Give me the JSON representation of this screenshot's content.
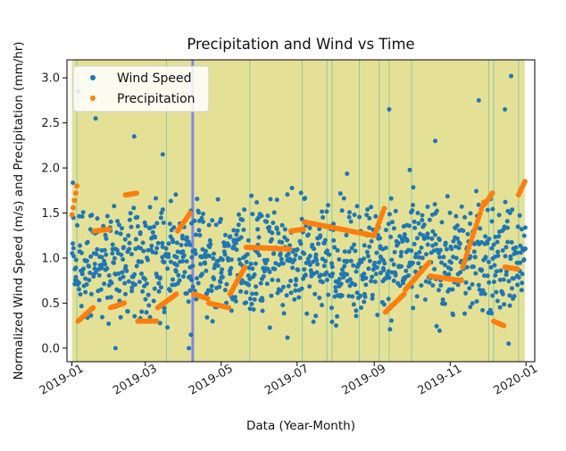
{
  "chart_data": {
    "type": "scatter",
    "title": "Precipitation and Wind vs Time",
    "xlabel": "Data (Year-Month)",
    "ylabel": "Normalized Wind Speed (m/s) and Precipitation (mm/hr)",
    "x_range": [
      "2018-12-28",
      "2020-01-08"
    ],
    "ylim": [
      -0.15,
      3.2
    ],
    "x_ticks": [
      {
        "date": "2019-01-01",
        "label": "2019-01"
      },
      {
        "date": "2019-03-01",
        "label": "2019-03"
      },
      {
        "date": "2019-05-01",
        "label": "2019-05"
      },
      {
        "date": "2019-07-01",
        "label": "2019-07"
      },
      {
        "date": "2019-09-01",
        "label": "2019-09"
      },
      {
        "date": "2019-11-01",
        "label": "2019-11"
      },
      {
        "date": "2020-01-01",
        "label": "2020-01"
      }
    ],
    "y_ticks": [
      0.0,
      0.5,
      1.0,
      1.5,
      2.0,
      2.5,
      3.0
    ],
    "y_tick_labels": [
      "0.0",
      "0.5",
      "1.0",
      "1.5",
      "2.0",
      "2.5",
      "3.0"
    ],
    "x_tick_rotation_deg": 30,
    "grid": false,
    "legend": {
      "placement": "upper-left",
      "entries": [
        {
          "label": "Wind Speed",
          "color": "#1f77b4"
        },
        {
          "label": "Precipitation",
          "color": "#ff7f0e"
        }
      ]
    },
    "shaded_region": {
      "start": "2019-01-01",
      "end": "2019-12-31",
      "color": "#d9d46b",
      "opacity": 0.7
    },
    "highlight_band": {
      "start": "2019-04-07",
      "end": "2019-04-08",
      "color": "#6666ff"
    },
    "event_lines": [
      "2019-01-05",
      "2019-03-18",
      "2019-05-24",
      "2019-07-05",
      "2019-07-25",
      "2019-07-29",
      "2019-08-20",
      "2019-09-05",
      "2019-09-13",
      "2019-10-01",
      "2019-12-02",
      "2019-12-06",
      "2019-12-26"
    ],
    "precipitation_segments": [
      {
        "start": "2019-01-01",
        "end": "2019-01-05",
        "from": 1.48,
        "to": 1.8
      },
      {
        "start": "2019-01-06",
        "end": "2019-01-18",
        "from": 0.3,
        "to": 0.45
      },
      {
        "start": "2019-01-19",
        "end": "2019-01-31",
        "from": 1.3,
        "to": 1.32
      },
      {
        "start": "2019-02-01",
        "end": "2019-02-12",
        "from": 0.45,
        "to": 0.5
      },
      {
        "start": "2019-02-13",
        "end": "2019-02-22",
        "from": 1.7,
        "to": 1.72
      },
      {
        "start": "2019-02-23",
        "end": "2019-03-10",
        "from": 0.3,
        "to": 0.3
      },
      {
        "start": "2019-03-11",
        "end": "2019-03-26",
        "from": 0.45,
        "to": 0.6
      },
      {
        "start": "2019-03-27",
        "end": "2019-04-06",
        "from": 1.3,
        "to": 1.5
      },
      {
        "start": "2019-04-09",
        "end": "2019-04-20",
        "from": 0.6,
        "to": 0.55
      },
      {
        "start": "2019-04-21",
        "end": "2019-05-07",
        "from": 0.5,
        "to": 0.45
      },
      {
        "start": "2019-05-08",
        "end": "2019-05-20",
        "from": 0.6,
        "to": 0.9
      },
      {
        "start": "2019-05-21",
        "end": "2019-06-25",
        "from": 1.12,
        "to": 1.1
      },
      {
        "start": "2019-06-26",
        "end": "2019-07-06",
        "from": 1.3,
        "to": 1.32
      },
      {
        "start": "2019-07-07",
        "end": "2019-08-31",
        "from": 1.4,
        "to": 1.25
      },
      {
        "start": "2019-09-01",
        "end": "2019-09-09",
        "from": 1.25,
        "to": 1.55
      },
      {
        "start": "2019-09-10",
        "end": "2019-09-25",
        "from": 0.4,
        "to": 0.6
      },
      {
        "start": "2019-09-26",
        "end": "2019-10-15",
        "from": 0.65,
        "to": 0.95
      },
      {
        "start": "2019-10-16",
        "end": "2019-11-10",
        "from": 0.8,
        "to": 0.75
      },
      {
        "start": "2019-11-11",
        "end": "2019-11-28",
        "from": 0.9,
        "to": 1.62
      },
      {
        "start": "2019-11-29",
        "end": "2019-12-05",
        "from": 1.6,
        "to": 1.72
      },
      {
        "start": "2019-12-06",
        "end": "2019-12-14",
        "from": 0.3,
        "to": 0.25
      },
      {
        "start": "2019-12-15",
        "end": "2019-12-25",
        "from": 0.9,
        "to": 0.88
      },
      {
        "start": "2019-12-26",
        "end": "2019-12-31",
        "from": 1.7,
        "to": 1.85
      }
    ],
    "wind_speed_series": {
      "name": "Wind Speed",
      "start": "2019-01-01",
      "end": "2019-12-31",
      "points_per_day": 3,
      "center": 1.0,
      "spread": 0.55,
      "outliers": [
        {
          "date": "2019-01-06",
          "y": 2.85
        },
        {
          "date": "2019-01-20",
          "y": 2.55
        },
        {
          "date": "2019-02-05",
          "y": 0.0
        },
        {
          "date": "2019-02-20",
          "y": 2.35
        },
        {
          "date": "2019-03-15",
          "y": 2.15
        },
        {
          "date": "2019-04-05",
          "y": 0.0
        },
        {
          "date": "2019-09-13",
          "y": 2.65
        },
        {
          "date": "2019-10-20",
          "y": 2.3
        },
        {
          "date": "2019-11-24",
          "y": 2.75
        },
        {
          "date": "2019-12-15",
          "y": 2.65
        },
        {
          "date": "2019-12-20",
          "y": 3.02
        },
        {
          "date": "2019-12-18",
          "y": 0.05
        }
      ]
    },
    "colors": {
      "wind": "#1f77b4",
      "precipitation": "#ff7f0e",
      "region": "#d9d46b",
      "wind_in_region": "#5e8569",
      "event_line": "#6fc0a8"
    }
  }
}
